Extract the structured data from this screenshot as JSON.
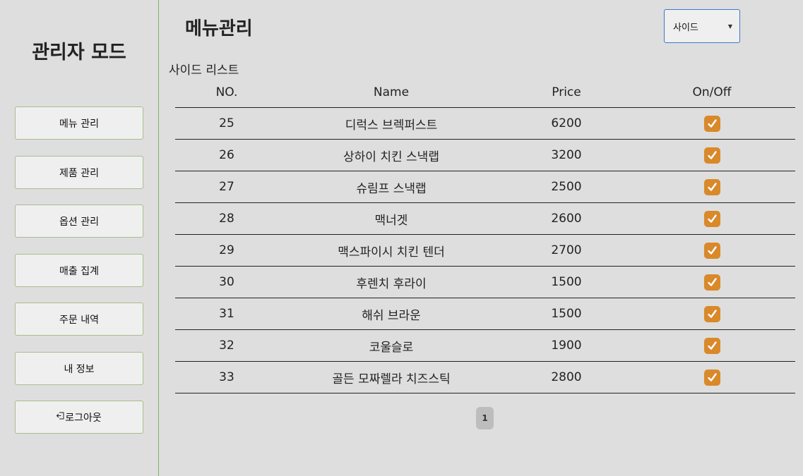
{
  "sidebar": {
    "title": "관리자 모드",
    "items": [
      {
        "label": "메뉴 관리"
      },
      {
        "label": "제품 관리"
      },
      {
        "label": "옵션 관리"
      },
      {
        "label": "매출 집계"
      },
      {
        "label": "주문 내역"
      },
      {
        "label": "내 정보"
      },
      {
        "label": "로그아웃",
        "icon": "logout-icon"
      }
    ]
  },
  "main": {
    "title": "메뉴관리",
    "category_select": {
      "selected": "사이드"
    },
    "section_title": "사이드 리스트",
    "table": {
      "headers": [
        "NO.",
        "Name",
        "Price",
        "On/Off"
      ],
      "rows": [
        {
          "no": "25",
          "name": "디럭스 브렉퍼스트",
          "price": "6200",
          "on": true
        },
        {
          "no": "26",
          "name": "상하이 치킨 스낵랩",
          "price": "3200",
          "on": true
        },
        {
          "no": "27",
          "name": "슈림프 스낵랩",
          "price": "2500",
          "on": true
        },
        {
          "no": "28",
          "name": "맥너겟",
          "price": "2600",
          "on": true
        },
        {
          "no": "29",
          "name": "맥스파이시 치킨 텐더",
          "price": "2700",
          "on": true
        },
        {
          "no": "30",
          "name": "후렌치 후라이",
          "price": "1500",
          "on": true
        },
        {
          "no": "31",
          "name": "해쉬 브라운",
          "price": "1500",
          "on": true
        },
        {
          "no": "32",
          "name": "코울슬로",
          "price": "1900",
          "on": true
        },
        {
          "no": "33",
          "name": "골든 모짜렐라 치즈스틱",
          "price": "2800",
          "on": true
        }
      ]
    },
    "pagination": {
      "current": "1"
    }
  },
  "colors": {
    "accent_checkbox": "#d9892a",
    "sidebar_border": "#7fb36b",
    "select_border": "#3a78c7"
  }
}
